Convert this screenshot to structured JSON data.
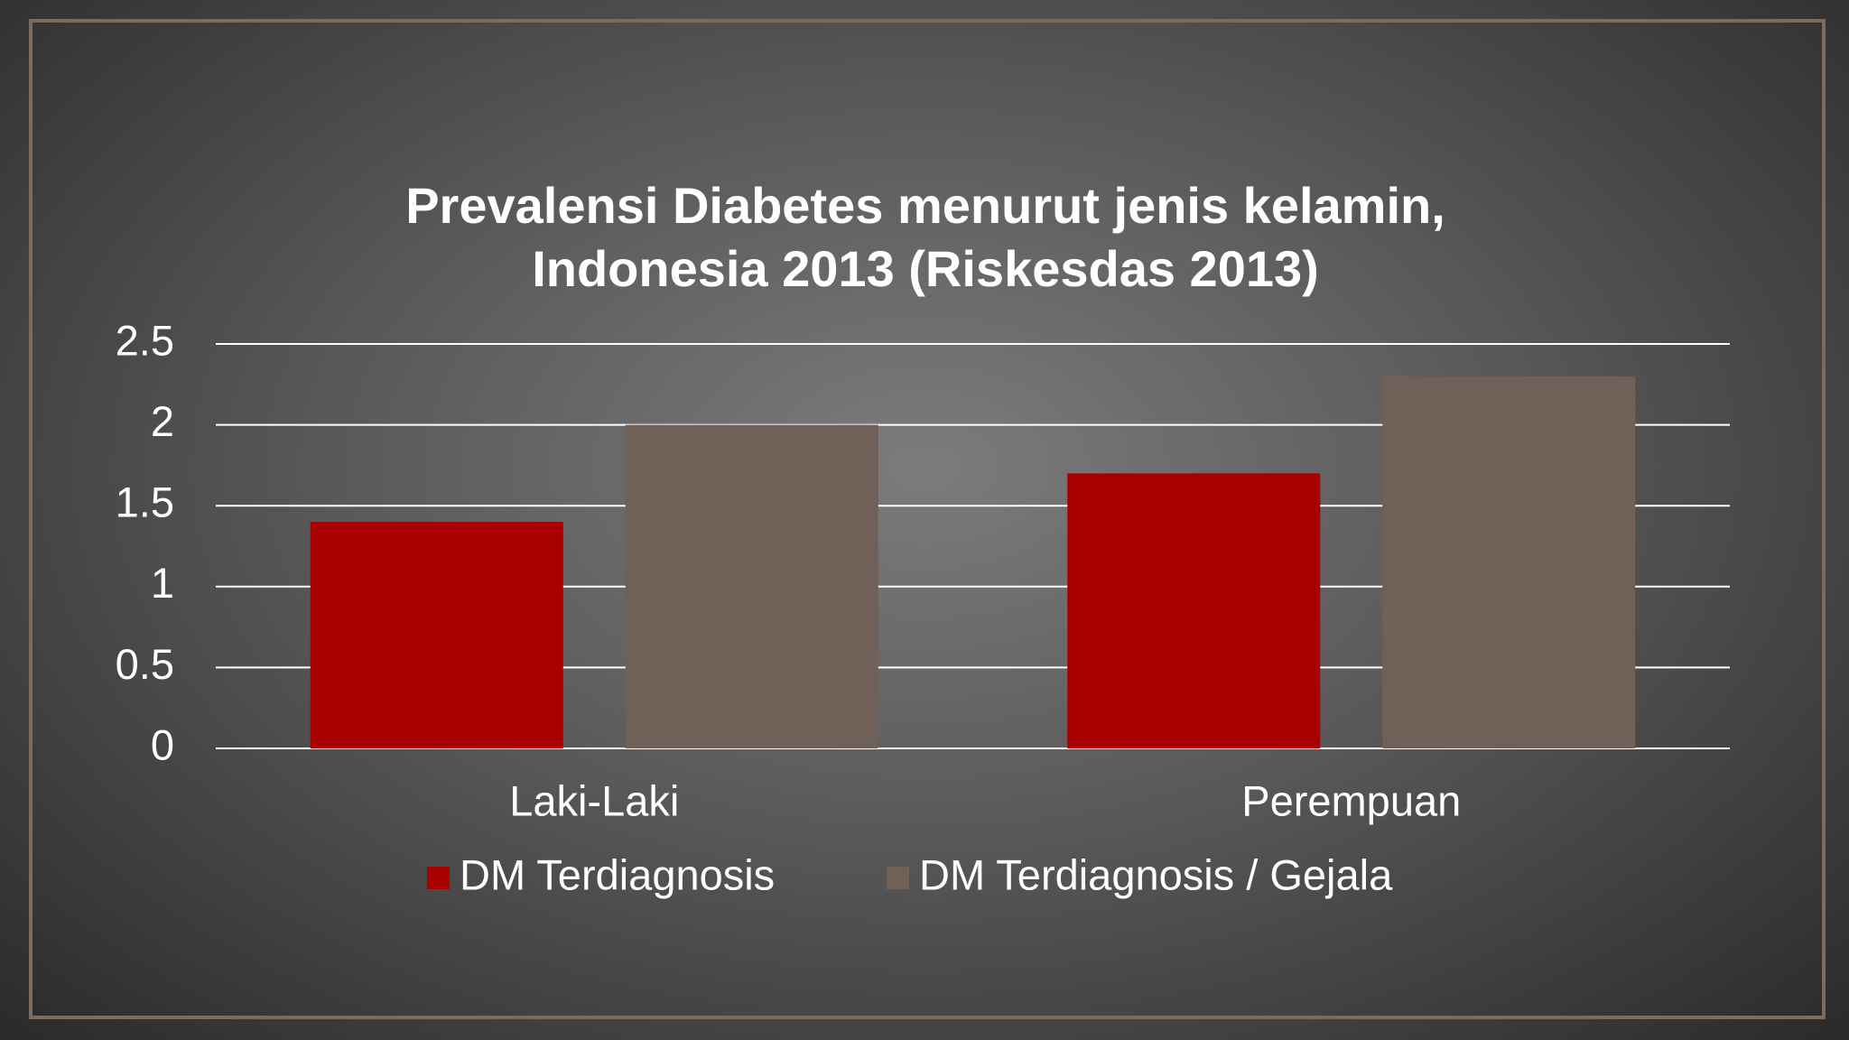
{
  "chart_data": {
    "type": "bar",
    "title": [
      "Prevalensi Diabetes menurut jenis kelamin,",
      "Indonesia 2013 (Riskesdas 2013)"
    ],
    "categories": [
      "Laki-Laki",
      "Perempuan"
    ],
    "series": [
      {
        "name": "DM Terdiagnosis",
        "color": "#a80000",
        "values": [
          1.4,
          1.7
        ]
      },
      {
        "name": "DM Terdiagnosis / Gejala",
        "color": "#6f6157",
        "values": [
          2.0,
          2.3
        ]
      }
    ],
    "ylim": [
      0,
      2.5
    ],
    "yticks": [
      0,
      0.5,
      1,
      1.5,
      2,
      2.5
    ],
    "grid": true,
    "legend": "bottom"
  }
}
